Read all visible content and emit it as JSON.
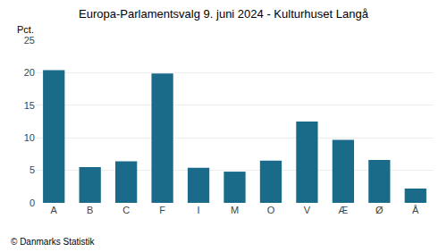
{
  "chart_data": {
    "type": "bar",
    "title": "Europa-Parlamentsvalg 9. juni 2024 - Kulturhuset Langå",
    "ylabel": "Pct.",
    "footer": "© Danmarks Statistik",
    "categories": [
      "A",
      "B",
      "C",
      "F",
      "I",
      "M",
      "O",
      "V",
      "Æ",
      "Ø",
      "Å"
    ],
    "values": [
      20.4,
      5.5,
      6.4,
      19.9,
      5.4,
      4.8,
      6.5,
      12.5,
      9.7,
      6.6,
      2.2
    ],
    "color": "#1a6b8a",
    "ylim": [
      0,
      25
    ],
    "yticks": [
      0,
      5,
      10,
      15,
      20,
      25
    ],
    "grid": true
  }
}
